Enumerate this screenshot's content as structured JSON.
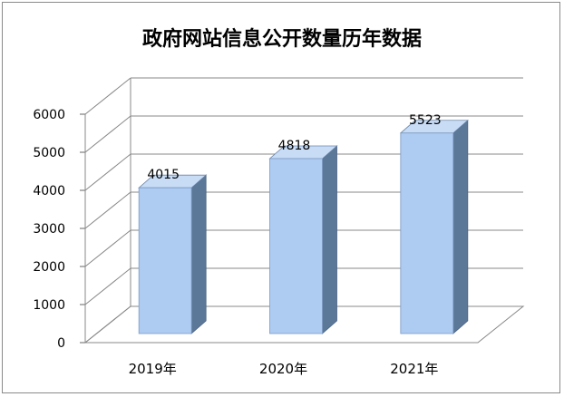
{
  "chart_data": {
    "type": "bar",
    "title": "政府网站信息公开数量历年数据",
    "categories": [
      "2019年",
      "2020年",
      "2021年"
    ],
    "values": [
      4015,
      4818,
      5523
    ],
    "data_labels": [
      "4015",
      "4818",
      "5523"
    ],
    "y_ticks": [
      "0",
      "1000",
      "2000",
      "3000",
      "4000",
      "5000",
      "6000"
    ],
    "ylim": [
      0,
      6000
    ],
    "grid": true,
    "legend": "none",
    "style": "3d-column",
    "colors": {
      "bar_front": "#aecbf2",
      "bar_side": "#5c7898",
      "bar_top": "#c8dcf6",
      "grid": "#888888"
    }
  }
}
